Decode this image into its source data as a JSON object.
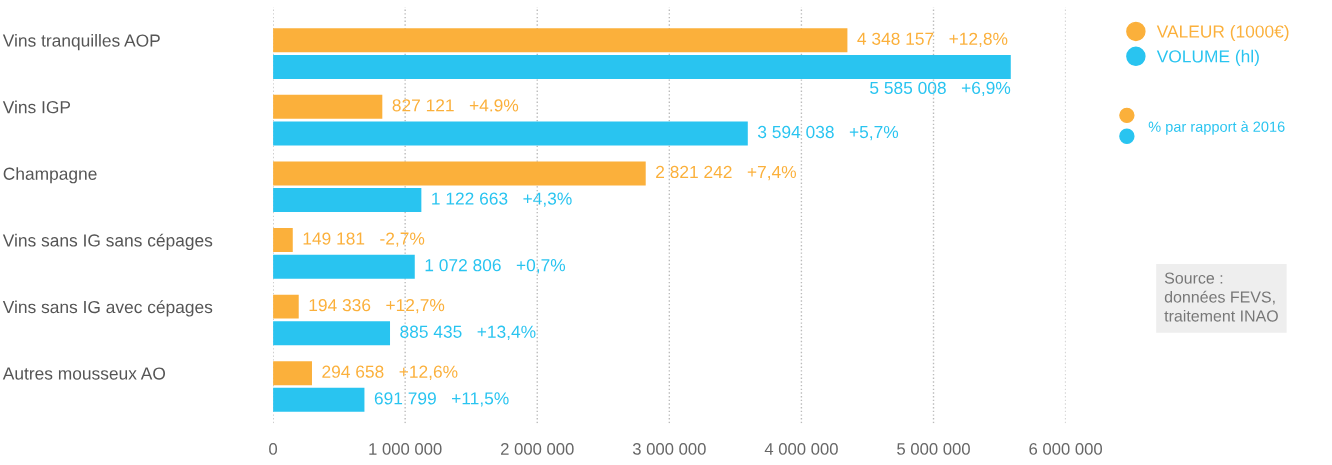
{
  "chart_data": {
    "type": "bar",
    "orientation": "horizontal",
    "categories": [
      "Vins tranquilles AOP",
      "Vins IGP",
      "Champagne",
      "Vins sans IG sans cépages",
      "Vins sans IG avec cépages",
      "Autres mousseux AO"
    ],
    "series": [
      {
        "name": "VALEUR (1000€)",
        "color": "#fbb03b",
        "values": [
          4348157,
          827121,
          2821242,
          149181,
          194336,
          294658
        ],
        "value_labels": [
          "4 348 157   +12,8%",
          "827 121   +4.9%",
          "2 821 242   +7,4%",
          "149 181   -2,7%",
          "194 336   +12,7%",
          "294 658   +12,6%"
        ]
      },
      {
        "name": "VOLUME (hl)",
        "color": "#29c4f0",
        "values": [
          5585008,
          3594038,
          1122663,
          1072806,
          885435,
          691799
        ],
        "value_labels": [
          "5 585 008   +6,9%",
          "3 594 038   +5,7%",
          "1 122 663   +4,3%",
          "1 072 806   +0,7%",
          "885 435   +13,4%",
          "691 799   +11,5%"
        ]
      }
    ],
    "xlim": [
      0,
      6000000
    ],
    "xticks": [
      {
        "value": 0,
        "label": "0"
      },
      {
        "value": 1000000,
        "label": "1 000 000"
      },
      {
        "value": 2000000,
        "label": "2 000 000"
      },
      {
        "value": 3000000,
        "label": "3 000 000"
      },
      {
        "value": 4000000,
        "label": "4 000 000"
      },
      {
        "value": 5000000,
        "label": "5 000 000"
      },
      {
        "value": 6000000,
        "label": "6 000 000"
      }
    ],
    "grid": "x",
    "legend": "top right",
    "annotations": [
      "% par rapport à 2016",
      "Source :\ndonnées FEVS,\ntraitement INAO"
    ]
  }
}
